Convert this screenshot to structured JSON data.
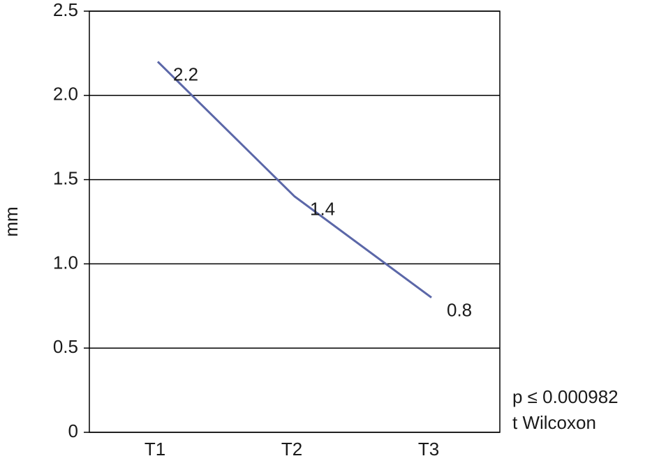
{
  "chart_data": {
    "type": "line",
    "y_label": "mm",
    "categories": [
      "T1",
      "T2",
      "T3"
    ],
    "series": [
      {
        "name": null,
        "color": "#5b67a8",
        "values": [
          2.2,
          1.4,
          0.8
        ],
        "value_labels": [
          "2.2",
          "1.4",
          "0.8"
        ]
      }
    ],
    "ylim": [
      0,
      2.5
    ],
    "yticks": [
      0,
      0.5,
      {
        "value": 1,
        "label": "1.0"
      },
      1.5,
      {
        "value": 2,
        "label": "2.0"
      },
      2.5
    ],
    "grid": true,
    "annotations": [
      "p ≤ 0.000982",
      "t Wilcoxon"
    ]
  }
}
